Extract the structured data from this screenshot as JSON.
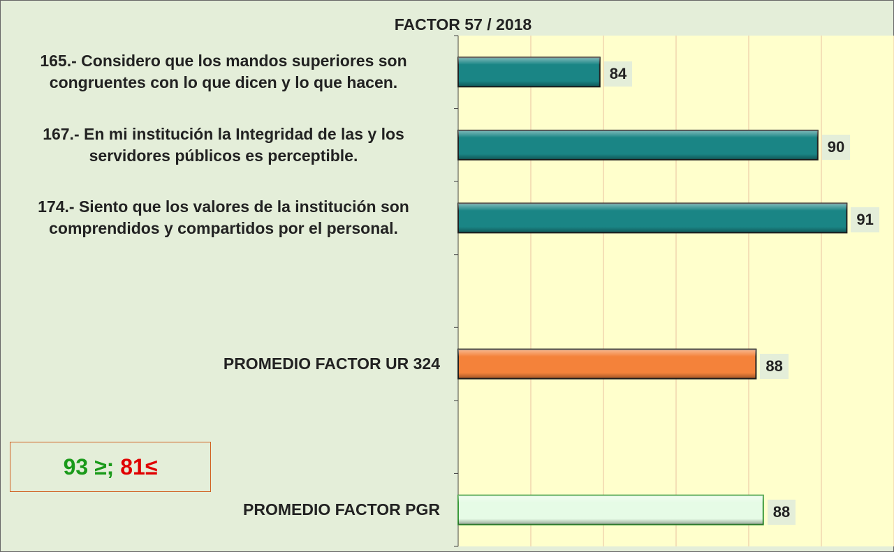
{
  "chart_data": {
    "type": "hbar",
    "title": "FACTOR 57 / 2018",
    "categories": [
      "165.- Considero que los mandos superiores son congruentes con lo que dicen y lo que hacen.",
      "167.- En mi institución la Integridad de las y los servidores públicos es perceptible.",
      "174.- Siento que los valores de la institución son comprendidos y compartidos por el personal.",
      null,
      "PROMEDIO FACTOR UR 324",
      null,
      "PROMEDIO FACTOR PGR"
    ],
    "values": [
      83.9,
      89.9,
      90.7,
      null,
      88.2,
      null,
      88.4
    ],
    "value_labels": [
      "84",
      "90",
      "91",
      null,
      "88",
      null,
      "88"
    ],
    "colors": [
      "#1a8585",
      "#1a8585",
      "#1a8585",
      null,
      "#f4823a",
      null,
      "#e6fbe6"
    ],
    "xlim": [
      80,
      92
    ],
    "xticks": [
      80,
      82,
      84,
      86,
      88,
      90,
      92
    ],
    "grid": true,
    "annotation": [
      {
        "text": "93 ≥;",
        "color": "#1a9a1a"
      },
      {
        "text": " 81≤",
        "color": "#e00000"
      }
    ]
  }
}
